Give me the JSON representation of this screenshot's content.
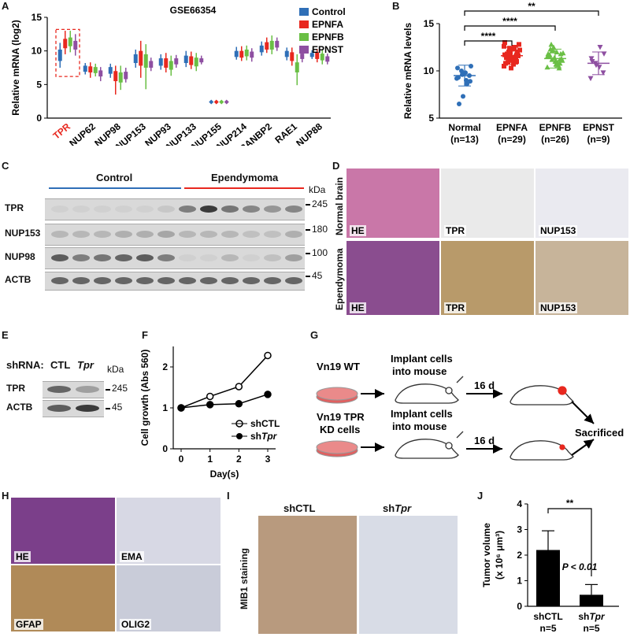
{
  "panels": {
    "A": "A",
    "B": "B",
    "C": "C",
    "D": "D",
    "E": "E",
    "F": "F",
    "G": "G",
    "H": "H",
    "I": "I",
    "J": "J"
  },
  "colors": {
    "control": "#2f6fb7",
    "epnfa": "#e8281f",
    "epnfb": "#6abf45",
    "epnst": "#8e4fa1",
    "highlight": "#e8281f"
  },
  "chart_data": [
    {
      "panel": "A",
      "type": "box",
      "title": "GSE66354",
      "ylabel": "Relative mRNA (log2)",
      "ylim": [
        0,
        15
      ],
      "yticks": [
        0,
        5,
        10,
        15
      ],
      "categories": [
        "TPR",
        "NUP62",
        "NUP98",
        "NUP153",
        "NUP93",
        "NUP133",
        "NUP155",
        "NUP214",
        "RANBP2",
        "RAE1",
        "NUP88"
      ],
      "highlight_category": "TPR",
      "series": [
        {
          "name": "Control",
          "values": [
            [
              7.5,
              8.5,
              9.3,
              10.2,
              11.2
            ],
            [
              6.5,
              6.9,
              7.3,
              7.8,
              8.2
            ],
            [
              6.0,
              6.6,
              7.1,
              7.6,
              8.1
            ],
            [
              7.5,
              8.2,
              8.8,
              9.5,
              10.2
            ],
            [
              7.2,
              7.8,
              8.3,
              8.9,
              9.5
            ],
            [
              7.6,
              8.2,
              8.8,
              9.3,
              10.0
            ],
            [
              2.4,
              2.4,
              2.4,
              2.4,
              2.4
            ],
            [
              8.7,
              9.1,
              9.5,
              10.0,
              10.6
            ],
            [
              9.3,
              9.8,
              10.3,
              10.8,
              11.4
            ],
            [
              8.6,
              9.1,
              9.5,
              10.0,
              10.5
            ],
            [
              8.8,
              9.1,
              9.4,
              9.7,
              10.1
            ]
          ]
        },
        {
          "name": "EPNFA",
          "values": [
            [
              9.5,
              10.4,
              11.0,
              11.8,
              13.0
            ],
            [
              6.0,
              6.8,
              7.2,
              7.7,
              8.3
            ],
            [
              3.5,
              5.5,
              6.2,
              7.0,
              7.8
            ],
            [
              6.0,
              7.8,
              9.0,
              10.0,
              11.5
            ],
            [
              6.8,
              7.5,
              8.2,
              8.9,
              9.7
            ],
            [
              7.3,
              7.9,
              8.5,
              9.2,
              9.9
            ],
            [
              2.4,
              2.4,
              2.4,
              2.4,
              2.4
            ],
            [
              8.5,
              9.0,
              9.5,
              10.0,
              10.7
            ],
            [
              9.7,
              10.2,
              10.7,
              11.3,
              12.0
            ],
            [
              7.8,
              8.5,
              9.2,
              9.8,
              10.5
            ],
            [
              8.3,
              8.8,
              9.3,
              9.8,
              10.3
            ]
          ]
        },
        {
          "name": "EPNFB",
          "values": [
            [
              9.8,
              10.7,
              11.3,
              12.0,
              13.0
            ],
            [
              6.2,
              6.7,
              7.1,
              7.6,
              8.1
            ],
            [
              4.2,
              5.3,
              6.0,
              6.8,
              7.8
            ],
            [
              4.3,
              7.5,
              8.5,
              9.5,
              11.0
            ],
            [
              6.3,
              7.2,
              7.8,
              8.5,
              9.3
            ],
            [
              7.0,
              7.7,
              8.3,
              9.0,
              9.7
            ],
            [
              2.4,
              2.4,
              2.4,
              2.4,
              2.4
            ],
            [
              8.6,
              9.2,
              9.7,
              10.2,
              10.8
            ],
            [
              9.5,
              10.2,
              10.8,
              11.5,
              12.3
            ],
            [
              4.9,
              6.8,
              7.6,
              8.3,
              9.5
            ],
            [
              8.0,
              8.6,
              9.1,
              9.6,
              10.2
            ]
          ]
        },
        {
          "name": "EPNST",
          "values": [
            [
              9.3,
              10.2,
              10.8,
              11.5,
              12.5
            ],
            [
              5.5,
              6.2,
              6.6,
              7.1,
              7.6
            ],
            [
              5.3,
              5.8,
              6.3,
              6.9,
              7.5
            ],
            [
              7.0,
              7.5,
              8.0,
              8.5,
              9.0
            ],
            [
              7.5,
              8.0,
              8.4,
              8.9,
              9.4
            ],
            [
              8.0,
              8.3,
              8.6,
              8.9,
              9.3
            ],
            [
              2.4,
              2.4,
              2.4,
              2.4,
              2.4
            ],
            [
              8.4,
              9.0,
              9.5,
              9.9,
              10.4
            ],
            [
              10.0,
              10.5,
              11.0,
              11.5,
              12.0
            ],
            [
              8.3,
              8.8,
              9.2,
              9.6,
              10.1
            ],
            [
              8.0,
              8.4,
              8.8,
              9.2,
              9.6
            ]
          ]
        }
      ]
    },
    {
      "panel": "B",
      "type": "scatter",
      "ylabel": "Relative mRNA levels",
      "ylim": [
        5,
        15
      ],
      "yticks": [
        5,
        10,
        15
      ],
      "categories": [
        "Normal\n(n=13)",
        "EPNFA\n(n=29)",
        "EPNFB\n(n=26)",
        "EPNST\n(n=9)"
      ],
      "category_names": [
        "Normal",
        "EPNFA",
        "EPNFB",
        "EPNST"
      ],
      "category_counts": [
        "(n=13)",
        "(n=29)",
        "(n=26)",
        "(n=9)"
      ],
      "means": [
        9.5,
        11.6,
        11.3,
        10.8
      ],
      "sd": [
        1.1,
        0.9,
        1.0,
        1.2
      ],
      "points": [
        [
          9.2,
          9.5,
          9.8,
          10.0,
          10.3,
          8.9,
          9.0,
          9.6,
          9.3,
          10.5,
          8.6,
          7.3,
          6.5
        ],
        [
          10.5,
          11.0,
          11.3,
          11.5,
          11.7,
          12.0,
          12.3,
          11.2,
          10.8,
          11.6,
          12.5,
          11.9,
          11.4,
          12.8,
          11.0,
          10.3,
          11.8,
          12.2,
          11.5,
          11.1,
          10.9,
          12.6,
          11.7,
          11.3,
          12.0,
          13.0,
          11.6,
          10.7,
          12.4
        ],
        [
          10.4,
          10.8,
          11.0,
          11.2,
          11.5,
          11.8,
          12.0,
          12.2,
          11.6,
          11.3,
          10.9,
          12.5,
          11.7,
          11.1,
          10.6,
          11.4,
          12.3,
          11.9,
          10.3,
          11.0,
          12.8,
          11.5,
          11.2,
          10.7,
          12.1,
          11.8
        ],
        [
          9.2,
          9.8,
          10.4,
          10.8,
          11.3,
          11.8,
          12.5,
          10.6,
          11.0
        ]
      ],
      "significance": [
        {
          "pair": [
            0,
            1
          ],
          "label": "****"
        },
        {
          "pair": [
            0,
            2
          ],
          "label": "****"
        },
        {
          "pair": [
            0,
            3
          ],
          "label": "**"
        }
      ]
    },
    {
      "panel": "F",
      "type": "line",
      "xlabel": "Day(s)",
      "ylabel": "Cell growth (Abs 560)",
      "xlim": [
        0,
        3
      ],
      "ylim": [
        0,
        2.5
      ],
      "x": [
        0,
        1,
        2,
        3
      ],
      "xticks": [
        0,
        1,
        2,
        3
      ],
      "yticks": [
        0,
        1,
        2
      ],
      "series": [
        {
          "name": "shCTL",
          "values": [
            1.0,
            1.28,
            1.52,
            2.28
          ],
          "err": [
            0.02,
            0.08,
            0.06,
            0.08
          ],
          "marker": "open"
        },
        {
          "name": "shTpr",
          "values": [
            1.0,
            1.08,
            1.1,
            1.33
          ],
          "err": [
            0.02,
            0.04,
            0.05,
            0.04
          ],
          "marker": "filled"
        }
      ],
      "legend_labels": [
        "shCTL",
        "sh",
        "Tpr"
      ]
    },
    {
      "panel": "J",
      "type": "bar",
      "ylabel": "Tumor volume\n(x 10⁶ μm³)",
      "ylabel_main": "Tumor volume",
      "ylabel_unit": "(x 10⁶ μm³)",
      "ylim": [
        0,
        4
      ],
      "yticks": [
        0,
        1,
        2,
        3,
        4
      ],
      "categories": [
        "shCTL",
        "shTpr"
      ],
      "values": [
        2.2,
        0.45
      ],
      "err": [
        0.75,
        0.4
      ],
      "category_labels": [
        "shCTL",
        "sh",
        "Tpr"
      ],
      "n_labels": [
        "n=5",
        "n=5"
      ],
      "significance": "**",
      "pvalue_label": "P < 0.01"
    }
  ],
  "panel_A": {
    "legend": [
      "Control",
      "EPNFA",
      "EPNFB",
      "EPNST"
    ]
  },
  "panel_C": {
    "group_control": "Control",
    "group_tumor": "Ependymoma",
    "unit": "kDa",
    "rows": [
      {
        "label": "TPR",
        "marker": "245"
      },
      {
        "label": "NUP153",
        "marker": "180"
      },
      {
        "label": "NUP98",
        "marker": "100"
      },
      {
        "label": "ACTB",
        "marker": "45"
      }
    ],
    "band_levels": {
      "TPR": [
        0.05,
        0.05,
        0.05,
        0.05,
        0.05,
        0.1,
        0.55,
        0.95,
        0.6,
        0.5,
        0.4,
        0.5
      ],
      "NUP153": [
        0.2,
        0.2,
        0.2,
        0.25,
        0.25,
        0.3,
        0.2,
        0.2,
        0.2,
        0.15,
        0.15,
        0.25
      ],
      "NUP98": [
        0.75,
        0.55,
        0.6,
        0.7,
        0.75,
        0.55,
        0.05,
        0.05,
        0.2,
        0.05,
        0.15,
        0.35
      ],
      "ACTB": [
        0.7,
        0.7,
        0.7,
        0.7,
        0.7,
        0.7,
        0.7,
        0.7,
        0.7,
        0.7,
        0.7,
        0.7
      ]
    }
  },
  "panel_D": {
    "row_normal": "Normal brain",
    "row_tumor": "Ependymoma",
    "stains": [
      "HE",
      "TPR",
      "NUP153"
    ]
  },
  "panel_E": {
    "shrna_label": "shRNA:",
    "lanes": [
      "CTL",
      "Tpr"
    ],
    "unit": "kDa",
    "rows": [
      {
        "label": "TPR",
        "marker": "245"
      },
      {
        "label": "ACTB",
        "marker": "45"
      }
    ],
    "band_levels": {
      "TPR": [
        0.7,
        0.35
      ],
      "ACTB": [
        0.75,
        0.95
      ]
    }
  },
  "panel_G": {
    "wt_label": "Vn19 WT",
    "kd_label_1": "Vn19 TPR",
    "kd_label_2": "KD cells",
    "implant_1": "Implant cells",
    "implant_2": "into mouse",
    "days": "16 d",
    "end": "Sacrificed"
  },
  "panel_H": {
    "stains": [
      "HE",
      "EMA",
      "GFAP",
      "OLIG2"
    ]
  },
  "panel_I": {
    "ylabel": "MIB1 staining",
    "col1": "shCTL",
    "col2_prefix": "sh",
    "col2_gene": "Tpr"
  }
}
